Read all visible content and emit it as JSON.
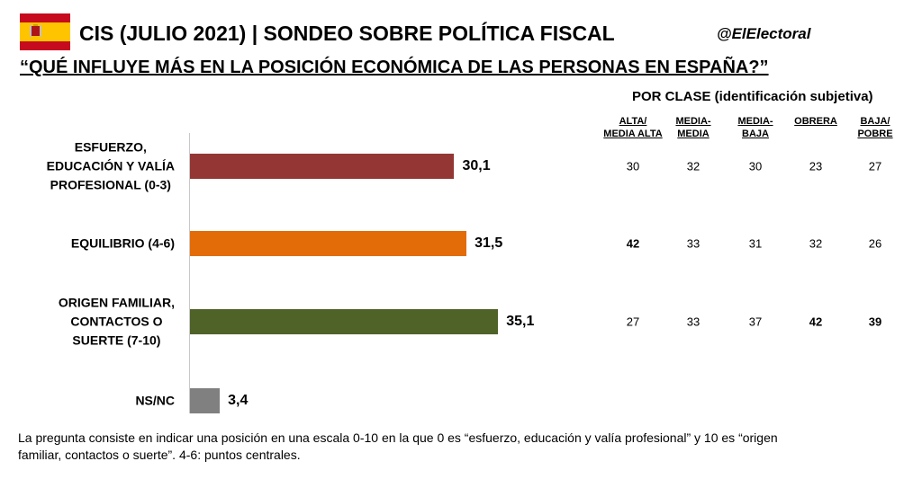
{
  "header": {
    "title": "CIS (JULIO 2021) | SONDEO SOBRE POLÍTICA FISCAL",
    "handle": "@ElElectoral",
    "question": "“QUÉ INFLUYE MÁS EN LA POSICIÓN ECONÓMICA DE LAS PERSONAS EN ESPAÑA?”",
    "flag_colors": {
      "red": "#c60b1e",
      "yellow": "#ffc400"
    }
  },
  "chart_data": {
    "type": "bar",
    "orientation": "horizontal",
    "categories": [
      [
        "ESFUERZO,",
        "EDUCACIÓN Y VALÍA",
        "PROFESIONAL (0-3)"
      ],
      [
        "EQUILIBRIO (4-6)"
      ],
      [
        "ORIGEN FAMILIAR,",
        "CONTACTOS O",
        "SUERTE (7-10)"
      ],
      [
        "NS/NC"
      ]
    ],
    "values": [
      30.1,
      31.5,
      35.1,
      3.4
    ],
    "value_labels": [
      "30,1",
      "31,5",
      "35,1",
      "3,4"
    ],
    "colors": [
      "#943634",
      "#e36c09",
      "#4f6228",
      "#808080"
    ],
    "xlim": [
      0,
      40
    ],
    "grid": false,
    "legend": "none"
  },
  "table": {
    "title": "POR CLASE (identificación subjetiva)",
    "columns": [
      [
        "ALTA/",
        "MEDIA ALTA"
      ],
      [
        "MEDIA-",
        "MEDIA"
      ],
      [
        "MEDIA-",
        "BAJA"
      ],
      [
        "OBRERA"
      ],
      [
        "BAJA/",
        "POBRE"
      ]
    ],
    "rows": [
      [
        "30",
        "32",
        "30",
        "23",
        "27"
      ],
      [
        "42",
        "33",
        "31",
        "32",
        "26"
      ],
      [
        "27",
        "33",
        "37",
        "42",
        "39"
      ]
    ],
    "bold": [
      [
        false,
        false,
        false,
        false,
        false
      ],
      [
        true,
        false,
        false,
        false,
        false
      ],
      [
        false,
        false,
        false,
        true,
        true
      ]
    ]
  },
  "footnote": "La pregunta consiste en indicar una posición en una escala 0-10 en la que 0 es “esfuerzo, educación y valía profesional” y 10 es “origen familiar, contactos o suerte”. 4-6: puntos centrales."
}
